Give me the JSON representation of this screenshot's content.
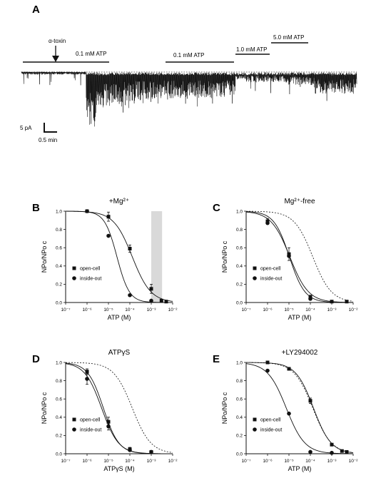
{
  "panel_a": {
    "letter": "A",
    "toxin_label": "α-toxin",
    "bars": [
      {
        "label": "0.1 mM ATP"
      },
      {
        "label": "0.1 mM ATP"
      },
      {
        "label": "1.0 mM ATP"
      },
      {
        "label": "5.0 mM ATP"
      }
    ],
    "scale_current": "5 pA",
    "scale_time": "0.5 min"
  },
  "chart_data": [
    {
      "panel": "B",
      "type": "scatter",
      "title": "+Mg²⁺",
      "xlabel": "ATP (M)",
      "ylabel": "NPo/NPo c",
      "xscale": "log",
      "xlim": [
        1e-07,
        0.01
      ],
      "ylim": [
        0,
        1.0
      ],
      "yticks": [
        "0.0",
        "0.2",
        "0.4",
        "0.6",
        "0.8",
        "1.0"
      ],
      "xticks": [
        "10⁻⁷",
        "10⁻⁶",
        "10⁻⁵",
        "10⁻⁴",
        "10⁻³",
        "10⁻²"
      ],
      "shaded_region": [
        0.001,
        0.0032
      ],
      "series": [
        {
          "name": "open-cell",
          "marker": "square",
          "x": [
            1e-06,
            1e-05,
            0.0001,
            0.001,
            0.003,
            0.005
          ],
          "y": [
            1.0,
            0.94,
            0.59,
            0.15,
            0.02,
            0.01
          ],
          "err": [
            0,
            0.05,
            0.04,
            0.05,
            0.01,
            0.01
          ]
        },
        {
          "name": "inside-out",
          "marker": "circle",
          "x": [
            1e-06,
            1e-05,
            0.0001,
            0.001
          ],
          "y": [
            1.0,
            0.73,
            0.08,
            0.02
          ]
        }
      ],
      "curves": [
        {
          "style": "solid",
          "ic50": 0.00013,
          "hill": 1.0
        },
        {
          "style": "solid",
          "ic50": 2.5e-05,
          "hill": 1.5
        }
      ],
      "legend": "left"
    },
    {
      "panel": "C",
      "type": "scatter",
      "title": "Mg²⁺-free",
      "xlabel": "ATP (M)",
      "ylabel": "NPo/NPo c",
      "xscale": "log",
      "xlim": [
        1e-07,
        0.01
      ],
      "ylim": [
        0,
        1.0
      ],
      "yticks": [
        "0.0",
        "0.2",
        "0.4",
        "0.6",
        "0.8",
        "1.0"
      ],
      "xticks": [
        "10⁻⁷",
        "10⁻⁶",
        "10⁻⁵",
        "10⁻⁴",
        "10⁻³",
        "10⁻²"
      ],
      "series": [
        {
          "name": "open-cell",
          "marker": "square",
          "x": [
            1e-06,
            1e-05,
            0.0001,
            0.001,
            0.005
          ],
          "y": [
            0.89,
            0.53,
            0.06,
            0.01,
            0.01
          ],
          "err": [
            0.03,
            0.07,
            0.02,
            0,
            0
          ]
        },
        {
          "name": "inside-out",
          "marker": "circle",
          "x": [
            1e-06,
            1e-05,
            0.0001
          ],
          "y": [
            0.87,
            0.51,
            0.04
          ]
        }
      ],
      "curves": [
        {
          "style": "solid",
          "ic50": 1.1e-05,
          "hill": 1.0
        },
        {
          "style": "solid",
          "ic50": 1.05e-05,
          "hill": 1.2
        },
        {
          "style": "dashed",
          "ic50": 0.00013,
          "hill": 1.0
        }
      ],
      "legend": "left"
    },
    {
      "panel": "D",
      "type": "scatter",
      "title": "ATPγS",
      "xlabel": "ATPγS (M)",
      "ylabel": "NPo/NPo c",
      "xscale": "log",
      "xlim": [
        1e-07,
        0.01
      ],
      "ylim": [
        0,
        1.0
      ],
      "yticks": [
        "0.0",
        "0.2",
        "0.4",
        "0.6",
        "0.8",
        "1.0"
      ],
      "xticks": [
        "10⁻⁷",
        "10⁻⁶",
        "10⁻⁵",
        "10⁻⁴",
        "10⁻³",
        "10⁻²"
      ],
      "series": [
        {
          "name": "open-cell",
          "marker": "square",
          "x": [
            1e-06,
            1e-05,
            0.0001,
            0.001
          ],
          "y": [
            0.9,
            0.35,
            0.05,
            0.02
          ],
          "err": [
            0.03,
            0.05,
            0.02,
            0
          ]
        },
        {
          "name": "inside-out",
          "marker": "circle",
          "x": [
            1e-06,
            1e-05,
            0.0001,
            0.001
          ],
          "y": [
            0.82,
            0.3,
            0.04,
            0.02
          ],
          "err": [
            0.06,
            0.04,
            0,
            0
          ]
        }
      ],
      "curves": [
        {
          "style": "solid",
          "ic50": 5.8e-06,
          "hill": 1.2
        },
        {
          "style": "solid",
          "ic50": 4.8e-06,
          "hill": 1.1
        },
        {
          "style": "dashed",
          "ic50": 0.00013,
          "hill": 1.0
        }
      ],
      "legend": "left"
    },
    {
      "panel": "E",
      "type": "scatter",
      "title": "+LY294002",
      "xlabel": "ATP (M)",
      "ylabel": "NPo/NPo c",
      "xscale": "log",
      "xlim": [
        1e-07,
        0.01
      ],
      "ylim": [
        0,
        1.0
      ],
      "yticks": [
        "0.0",
        "0.2",
        "0.4",
        "0.6",
        "0.8",
        "1.0"
      ],
      "xticks": [
        "10⁻⁷",
        "10⁻⁶",
        "10⁻⁵",
        "10⁻⁴",
        "10⁻³",
        "10⁻²"
      ],
      "series": [
        {
          "name": "open-cell",
          "marker": "square",
          "x": [
            1e-06,
            1e-05,
            0.0001,
            0.001,
            0.003,
            0.005
          ],
          "y": [
            1.0,
            0.93,
            0.58,
            0.1,
            0.03,
            0.02
          ],
          "err": [
            0,
            0,
            0.03,
            0,
            0,
            0
          ]
        },
        {
          "name": "inside-out",
          "marker": "circle",
          "x": [
            1e-06,
            1e-05,
            0.0001,
            0.001
          ],
          "y": [
            0.91,
            0.44,
            0.02,
            0.01
          ]
        }
      ],
      "curves": [
        {
          "style": "solid",
          "ic50": 0.00014,
          "hill": 1.05
        },
        {
          "style": "solid",
          "ic50": 7.5e-06,
          "hill": 1.0
        },
        {
          "style": "dashed",
          "ic50": 0.00013,
          "hill": 1.0
        }
      ],
      "legend": "left"
    }
  ]
}
